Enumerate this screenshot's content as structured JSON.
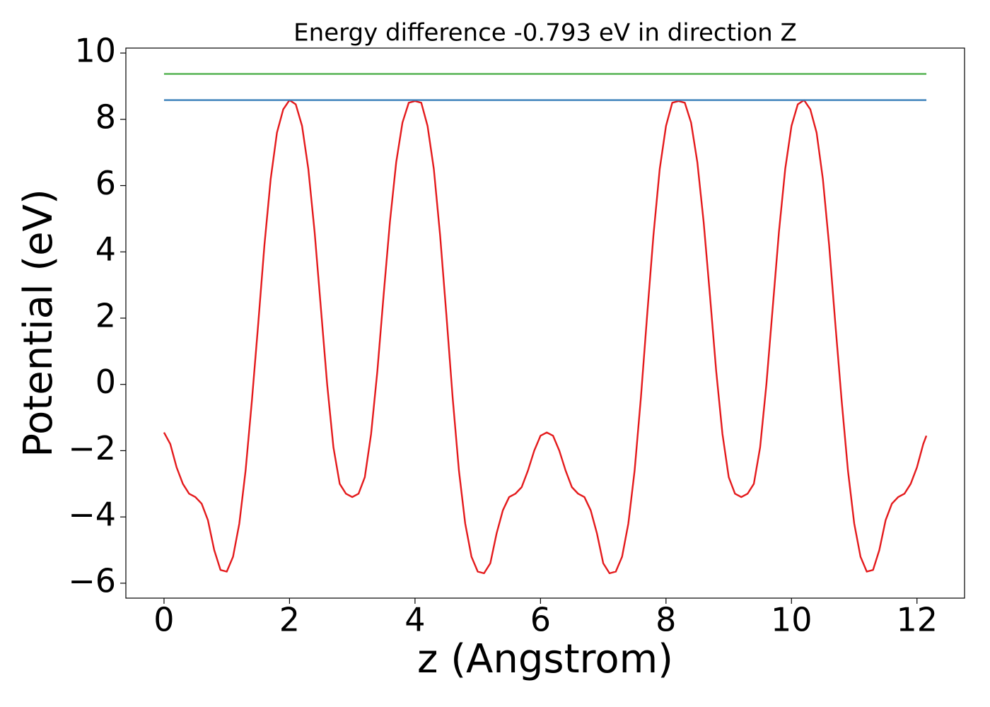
{
  "chart_data": {
    "type": "line",
    "title": "Energy difference -0.793 eV in direction Z",
    "xlabel": "z (Angstrom)",
    "ylabel": "Potential (eV)",
    "xlim": [
      -0.608,
      12.758
    ],
    "ylim": [
      -6.45,
      10.15
    ],
    "xticks": [
      0,
      2,
      4,
      6,
      8,
      10,
      12
    ],
    "yticks": [
      {
        "value": -6,
        "label": "−6"
      },
      {
        "value": -4,
        "label": "−4"
      },
      {
        "value": -2,
        "label": "−2"
      },
      0,
      2,
      4,
      6,
      8,
      10
    ],
    "grid": false,
    "series": [
      {
        "color": "#e41a1c",
        "x": [
          0,
          0.1,
          0.2,
          0.3,
          0.4,
          0.5,
          0.6,
          0.7,
          0.8,
          0.9,
          1.0,
          1.1,
          1.2,
          1.3,
          1.4,
          1.5,
          1.6,
          1.7,
          1.8,
          1.9,
          2.0,
          2.1,
          2.2,
          2.3,
          2.4,
          2.5,
          2.6,
          2.7,
          2.8,
          2.9,
          3.0,
          3.1,
          3.2,
          3.3,
          3.4,
          3.5,
          3.6,
          3.7,
          3.8,
          3.9,
          4.0,
          4.1,
          4.2,
          4.3,
          4.4,
          4.5,
          4.6,
          4.7,
          4.8,
          4.9,
          5.0,
          5.1,
          5.2,
          5.3,
          5.4,
          5.5,
          5.6,
          5.7,
          5.8,
          5.9,
          6.0,
          6.1,
          6.2,
          6.3,
          6.4,
          6.5,
          6.6,
          6.7,
          6.8,
          6.9,
          7.0,
          7.1,
          7.2,
          7.3,
          7.4,
          7.5,
          7.6,
          7.7,
          7.8,
          7.9,
          8.0,
          8.1,
          8.2,
          8.3,
          8.4,
          8.5,
          8.6,
          8.7,
          8.8,
          8.9,
          9.0,
          9.1,
          9.2,
          9.3,
          9.4,
          9.5,
          9.6,
          9.7,
          9.8,
          9.9,
          10.0,
          10.1,
          10.2,
          10.3,
          10.4,
          10.5,
          10.6,
          10.7,
          10.8,
          10.9,
          11.0,
          11.1,
          11.2,
          11.3,
          11.4,
          11.5,
          11.6,
          11.7,
          11.8,
          11.9,
          12.0,
          12.1,
          12.15
        ],
        "values": [
          -1.45,
          -1.8,
          -2.5,
          -3.0,
          -3.3,
          -3.4,
          -3.6,
          -4.1,
          -5.0,
          -5.6,
          -5.65,
          -5.2,
          -4.2,
          -2.6,
          -0.5,
          1.8,
          4.2,
          6.2,
          7.6,
          8.3,
          8.58,
          8.45,
          7.8,
          6.5,
          4.6,
          2.3,
          0.0,
          -1.9,
          -3.0,
          -3.3,
          -3.4,
          -3.3,
          -2.8,
          -1.5,
          0.4,
          2.7,
          4.9,
          6.7,
          7.9,
          8.5,
          8.55,
          8.5,
          7.8,
          6.5,
          4.5,
          2.1,
          -0.4,
          -2.6,
          -4.2,
          -5.2,
          -5.65,
          -5.7,
          -5.4,
          -4.5,
          -3.8,
          -3.4,
          -3.3,
          -3.1,
          -2.6,
          -2.0,
          -1.55,
          -1.45,
          -1.55,
          -2.0,
          -2.6,
          -3.1,
          -3.3,
          -3.4,
          -3.8,
          -4.5,
          -5.4,
          -5.7,
          -5.65,
          -5.2,
          -4.2,
          -2.6,
          -0.4,
          2.1,
          4.5,
          6.5,
          7.8,
          8.5,
          8.55,
          8.5,
          7.9,
          6.7,
          4.9,
          2.7,
          0.4,
          -1.5,
          -2.8,
          -3.3,
          -3.4,
          -3.3,
          -3.0,
          -1.9,
          0.0,
          2.3,
          4.6,
          6.5,
          7.8,
          8.45,
          8.58,
          8.3,
          7.6,
          6.2,
          4.2,
          1.8,
          -0.5,
          -2.6,
          -4.2,
          -5.2,
          -5.65,
          -5.6,
          -5.0,
          -4.1,
          -3.6,
          -3.4,
          -3.3,
          -3.0,
          -2.5,
          -1.8,
          -1.55
        ]
      },
      {
        "color": "#377eb8",
        "x": [
          0,
          12.15
        ],
        "values": [
          8.58,
          8.58
        ]
      },
      {
        "color": "#4daf4a",
        "x": [
          0,
          12.15
        ],
        "values": [
          9.37,
          9.37
        ]
      }
    ]
  }
}
